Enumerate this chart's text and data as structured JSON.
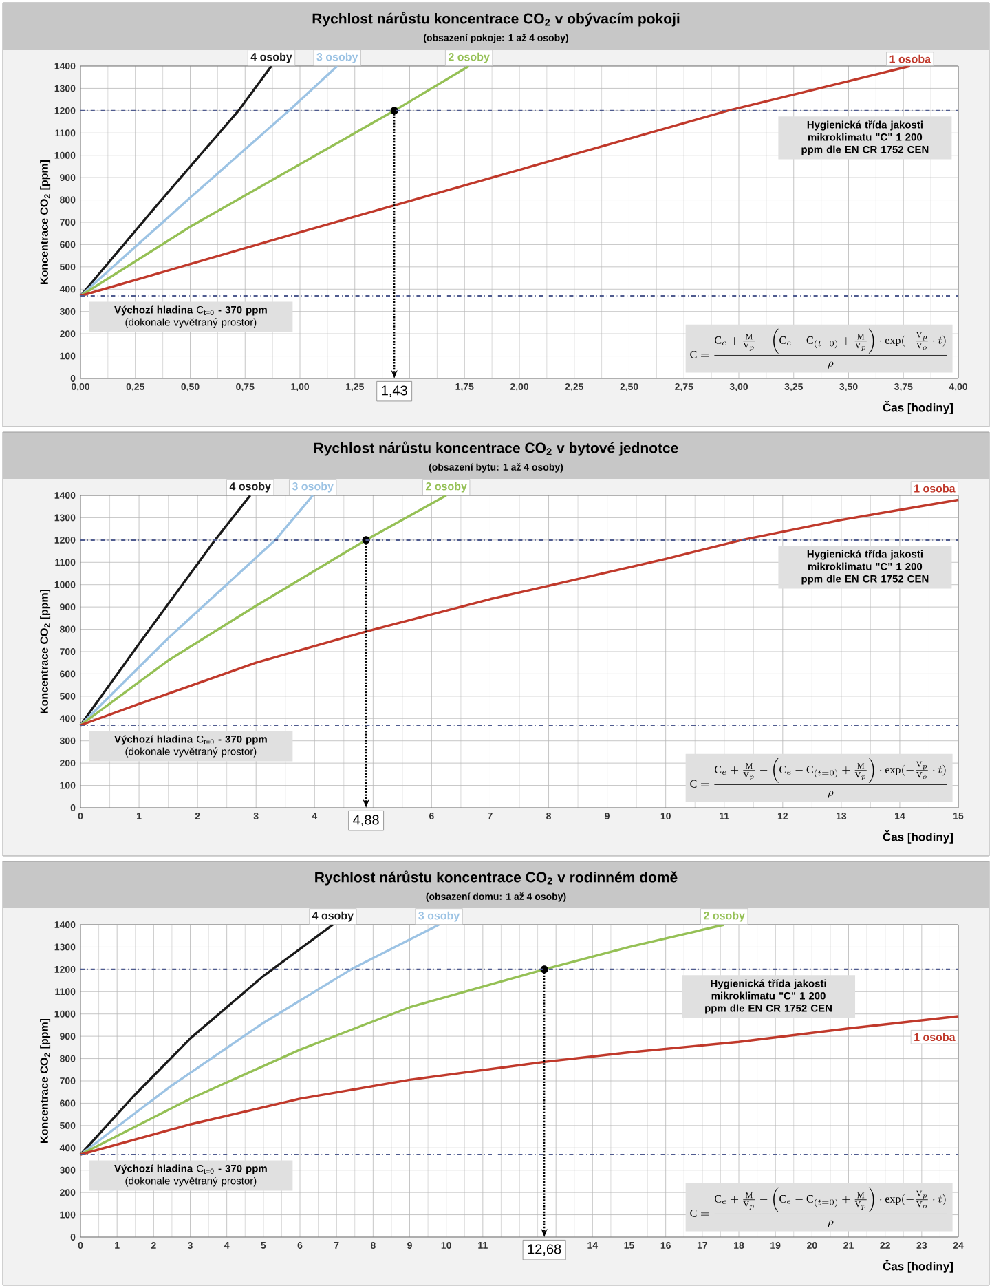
{
  "chart_data": [
    {
      "type": "line",
      "title": "Rychlost nárůstu koncentrace CO$_{2}$ v obývacím pokoji",
      "subtitle": "(obsazení pokoje: 1 až 4 osoby)",
      "xlabel": "Čas [hodiny]",
      "ylabel": "Koncentrace CO$_{2}$ [ppm]",
      "xlim": [
        0,
        4
      ],
      "ylim": [
        0,
        1400
      ],
      "xticks": [
        {
          "value": 0,
          "label": "0,00"
        },
        {
          "value": 0.25,
          "label": "0,25"
        },
        {
          "value": 0.5,
          "label": "0,50"
        },
        {
          "value": 0.75,
          "label": "0,75"
        },
        {
          "value": 1,
          "label": "1,00"
        },
        {
          "value": 1.25,
          "label": "1,25"
        },
        {
          "value": 1.5,
          "label": null
        },
        {
          "value": 1.75,
          "label": "1,75"
        },
        {
          "value": 2,
          "label": "2,00"
        },
        {
          "value": 2.25,
          "label": "2,25"
        },
        {
          "value": 2.5,
          "label": "2,50"
        },
        {
          "value": 2.75,
          "label": "2,75"
        },
        {
          "value": 3,
          "label": "3,00"
        },
        {
          "value": 3.25,
          "label": "3,25"
        },
        {
          "value": 3.5,
          "label": "3,50"
        },
        {
          "value": 3.75,
          "label": "3,75"
        },
        {
          "value": 4,
          "label": "4,00"
        }
      ],
      "yticks": [
        0,
        100,
        200,
        300,
        400,
        500,
        600,
        700,
        800,
        900,
        1000,
        1100,
        1200,
        1300,
        1400
      ],
      "grid": true,
      "series": [
        {
          "name": "4 osoby",
          "color": "#1a1a1a",
          "x": [
            0,
            0.36,
            0.72,
            0.87
          ],
          "values": [
            370,
            790,
            1200,
            1400
          ]
        },
        {
          "name": "3 osoby",
          "color": "#9cc3e4",
          "x": [
            0,
            0.5,
            0.95,
            1.17
          ],
          "values": [
            370,
            810,
            1200,
            1400
          ]
        },
        {
          "name": "2 osoby",
          "color": "#95c055",
          "x": [
            0,
            0.5,
            1,
            1.43,
            1.77
          ],
          "values": [
            370,
            680,
            960,
            1200,
            1400
          ]
        },
        {
          "name": "1 osoba",
          "color": "#c0392b",
          "x": [
            0,
            1,
            2,
            2.95,
            3.78
          ],
          "values": [
            370,
            655,
            935,
            1200,
            1400
          ]
        }
      ],
      "ref_lines": [
        {
          "axis": "y",
          "value": 1200,
          "label": "Hygienická třída jakosti mikroklimatu \"C\" 1 200 ppm dle EN CR 1752 CEN",
          "color": "#4f5b8f",
          "line_style": "dashdot"
        },
        {
          "axis": "y",
          "value": 370,
          "color": "#4f5b8f",
          "line_style": "dashdot"
        }
      ],
      "annotations": [
        "**Výchozí hladina** C$_{t=0}$ **- 370 ppm** (dokonale vyvětraný prostor)",
        "\\mathrm{C}=\\frac{\\mathrm{C}_{e}+\\frac{\\mathrm{M}}{\\mathrm{V}_{p}}-\\left(\\mathrm{C}_{e}-\\mathrm{C}_{(t=0)}+\\frac{\\mathrm{M}}{\\mathrm{V}_{p}}\\right)\\cdot\\exp(-\\frac{\\mathrm{V}_{p}}{\\mathrm{V}_{o}}\\cdot t)}{\\rho}",
        {
          "text": "1,43",
          "x": 1.43,
          "y": 1200
        }
      ]
    },
    {
      "type": "line",
      "title": "Rychlost nárůstu koncentrace CO$_{2}$ v bytové jednotce",
      "subtitle": "(obsazení bytu: 1 až 4 osoby)",
      "xlabel": "Čas [hodiny]",
      "ylabel": "Koncentrace CO$_{2}$ [ppm]",
      "xlim": [
        0,
        15
      ],
      "ylim": [
        0,
        1400
      ],
      "xticks": [
        0,
        1,
        2,
        3,
        4,
        {
          "value": 5,
          "label": null
        },
        6,
        7,
        8,
        9,
        10,
        11,
        12,
        13,
        14,
        15
      ],
      "yticks": [
        0,
        100,
        200,
        300,
        400,
        500,
        600,
        700,
        800,
        900,
        1000,
        1100,
        1200,
        1300,
        1400
      ],
      "grid": true,
      "series": [
        {
          "name": "4 osoby",
          "color": "#1a1a1a",
          "x": [
            0,
            1,
            2.3,
            2.9
          ],
          "values": [
            370,
            735,
            1200,
            1400
          ]
        },
        {
          "name": "3 osoby",
          "color": "#9cc3e4",
          "x": [
            0,
            1.5,
            3.33,
            3.97
          ],
          "values": [
            370,
            760,
            1200,
            1400
          ]
        },
        {
          "name": "2 osoby",
          "color": "#95c055",
          "x": [
            0,
            1.5,
            3,
            4.88,
            6.25
          ],
          "values": [
            370,
            660,
            905,
            1200,
            1400
          ]
        },
        {
          "name": "1 osoba",
          "color": "#c0392b",
          "x": [
            0,
            1,
            3,
            4.88,
            7,
            10,
            11.3,
            13,
            15
          ],
          "values": [
            370,
            465,
            650,
            790,
            935,
            1115,
            1200,
            1290,
            1380
          ]
        }
      ],
      "ref_lines": [
        {
          "axis": "y",
          "value": 1200,
          "label": "Hygienická třída jakosti mikroklimatu \"C\" 1 200 ppm dle EN CR 1752 CEN",
          "color": "#4f5b8f",
          "line_style": "dashdot"
        },
        {
          "axis": "y",
          "value": 370,
          "color": "#4f5b8f",
          "line_style": "dashdot"
        }
      ],
      "annotations": [
        "**Výchozí hladina** C$_{t=0}$ **- 370 ppm** (dokonale vyvětraný prostor)",
        "\\mathrm{C}=\\frac{\\mathrm{C}_{e}+\\frac{\\mathrm{M}}{\\mathrm{V}_{p}}-\\left(\\mathrm{C}_{e}-\\mathrm{C}_{(t=0)}+\\frac{\\mathrm{M}}{\\mathrm{V}_{p}}\\right)\\cdot\\exp(-\\frac{\\mathrm{V}_{p}}{\\mathrm{V}_{o}}\\cdot t)}{\\rho}",
        {
          "text": "4,88",
          "x": 4.88,
          "y": 1200
        }
      ]
    },
    {
      "type": "line",
      "title": "Rychlost nárůstu koncentrace CO$_{2}$ v rodinném domě",
      "subtitle": "(obsazení domu: 1 až 4 osoby)",
      "xlabel": "Čas [hodiny]",
      "ylabel": "Koncentrace CO$_{2}$ [ppm]",
      "xlim": [
        0,
        24
      ],
      "ylim": [
        0,
        1400
      ],
      "xticks": [
        0,
        1,
        2,
        3,
        4,
        5,
        6,
        7,
        8,
        9,
        10,
        11,
        {
          "value": 12,
          "label": null
        },
        {
          "value": 13,
          "label": null
        },
        14,
        15,
        16,
        17,
        18,
        19,
        20,
        21,
        22,
        23,
        24
      ],
      "yticks": [
        0,
        100,
        200,
        300,
        400,
        500,
        600,
        700,
        800,
        900,
        1000,
        1100,
        1200,
        1300,
        1400
      ],
      "grid": true,
      "series": [
        {
          "name": "4 osoby",
          "color": "#1a1a1a",
          "x": [
            0,
            1.5,
            3,
            5,
            6.9
          ],
          "values": [
            370,
            640,
            890,
            1170,
            1400
          ]
        },
        {
          "name": "3 osoby",
          "color": "#9cc3e4",
          "x": [
            0,
            2.5,
            5,
            7.4,
            9.8
          ],
          "values": [
            370,
            680,
            960,
            1200,
            1400
          ]
        },
        {
          "name": "2 osoby",
          "color": "#95c055",
          "x": [
            0,
            3,
            6,
            9,
            12.68,
            15,
            17.6
          ],
          "values": [
            370,
            620,
            840,
            1030,
            1200,
            1300,
            1400
          ]
        },
        {
          "name": "1 osoba",
          "color": "#c0392b",
          "x": [
            0,
            3,
            6,
            9,
            12.68,
            15,
            18,
            21,
            24
          ],
          "values": [
            370,
            505,
            620,
            705,
            785,
            828,
            875,
            935,
            990
          ]
        }
      ],
      "ref_lines": [
        {
          "axis": "y",
          "value": 1200,
          "label": "Hygienická třída jakosti mikroklimatu \"C\" 1 200 ppm dle EN CR 1752 CEN",
          "color": "#4f5b8f",
          "line_style": "dashdot"
        },
        {
          "axis": "y",
          "value": 370,
          "color": "#4f5b8f",
          "line_style": "dashdot"
        }
      ],
      "annotations": [
        "**Výchozí hladina** C$_{t=0}$ **- 370 ppm** (dokonale vyvětraný prostor)",
        "\\mathrm{C}=\\frac{\\mathrm{C}_{e}+\\frac{\\mathrm{M}}{\\mathrm{V}_{p}}-\\left(\\mathrm{C}_{e}-\\mathrm{C}_{(t=0)}+\\frac{\\mathrm{M}}{\\mathrm{V}_{p}}\\right)\\cdot\\exp(-\\frac{\\mathrm{V}_{p}}{\\mathrm{V}_{o}}\\cdot t)}{\\rho}",
        {
          "text": "12,68",
          "x": 12.68,
          "y": 1200
        }
      ]
    }
  ]
}
